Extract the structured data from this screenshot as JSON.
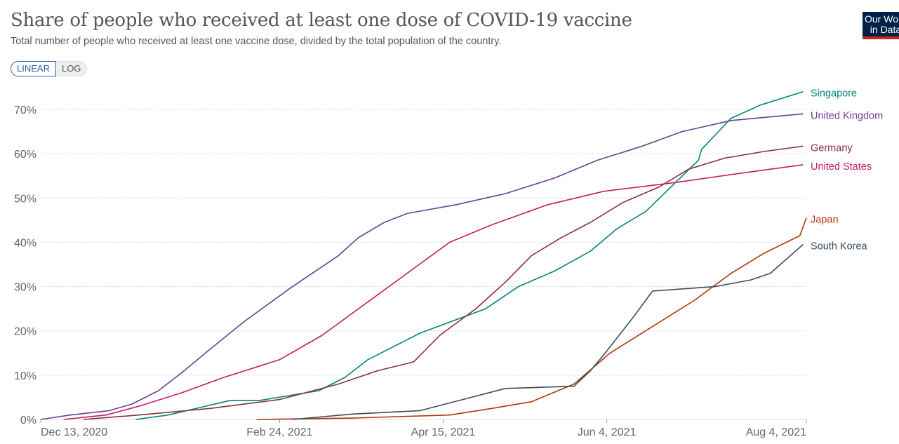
{
  "header": {
    "title": "Share of people who received at least one dose of COVID-19 vaccine",
    "subtitle": "Total number of people who received at least one vaccine dose, divided by the total population of the country.",
    "logo": "Our World in Data"
  },
  "scale_toggle": {
    "linear": "LINEAR",
    "log": "LOG",
    "selected": "LINEAR"
  },
  "chart_data": {
    "type": "line",
    "title": "Share of people who received at least one dose of COVID-19 vaccine",
    "xlim": [
      "2020-12-13",
      "2021-08-04"
    ],
    "ylim": [
      0,
      70
    ],
    "x_ticks": [
      "2020-12-13",
      "2021-02-24",
      "2021-04-15",
      "2021-06-04",
      "2021-08-04"
    ],
    "x_tick_labels": [
      "Dec 13, 2020",
      "Feb 24, 2021",
      "Apr 15, 2021",
      "Jun 4, 2021",
      "Aug 4, 2021"
    ],
    "y_ticks": [
      0,
      10,
      20,
      30,
      40,
      50,
      60,
      70
    ],
    "y_tick_labels": [
      "0%",
      "10%",
      "20%",
      "30%",
      "40%",
      "50%",
      "60%",
      "70%"
    ],
    "grid": "horizontal dashed",
    "legend": "line-end labels, right",
    "series": [
      {
        "name": "Singapore",
        "color": "#00847e",
        "points": [
          [
            "2021-01-11",
            0
          ],
          [
            "2021-01-21",
            1
          ],
          [
            "2021-02-09",
            4.3
          ],
          [
            "2021-02-18",
            4.3
          ],
          [
            "2021-03-08",
            6.5
          ],
          [
            "2021-03-16",
            9.5
          ],
          [
            "2021-03-23",
            13.5
          ],
          [
            "2021-04-04",
            18
          ],
          [
            "2021-04-08",
            19.5
          ],
          [
            "2021-04-28",
            25
          ],
          [
            "2021-05-08",
            30
          ],
          [
            "2021-05-19",
            33.5
          ],
          [
            "2021-05-30",
            38
          ],
          [
            "2021-06-07",
            43
          ],
          [
            "2021-06-16",
            47
          ],
          [
            "2021-06-25",
            53.5
          ],
          [
            "2021-07-02",
            58.5
          ],
          [
            "2021-07-03",
            61
          ],
          [
            "2021-07-12",
            68
          ],
          [
            "2021-07-21",
            71
          ],
          [
            "2021-08-03",
            74
          ]
        ]
      },
      {
        "name": "United Kingdom",
        "color": "#6d3e91",
        "points": [
          [
            "2020-12-13",
            0
          ],
          [
            "2020-12-22",
            1
          ],
          [
            "2021-01-03",
            2
          ],
          [
            "2021-01-10",
            3.5
          ],
          [
            "2021-01-18",
            6.5
          ],
          [
            "2021-01-25",
            10.5
          ],
          [
            "2021-02-03",
            16
          ],
          [
            "2021-02-13",
            22
          ],
          [
            "2021-02-27",
            29.5
          ],
          [
            "2021-03-06",
            33
          ],
          [
            "2021-03-14",
            37
          ],
          [
            "2021-03-20",
            41
          ],
          [
            "2021-03-28",
            44.5
          ],
          [
            "2021-04-04",
            46.5
          ],
          [
            "2021-04-19",
            48.5
          ],
          [
            "2021-05-04",
            51
          ],
          [
            "2021-05-19",
            54.5
          ],
          [
            "2021-06-01",
            58.5
          ],
          [
            "2021-06-14",
            61.5
          ],
          [
            "2021-06-27",
            65
          ],
          [
            "2021-07-12",
            67.5
          ],
          [
            "2021-08-03",
            69
          ]
        ]
      },
      {
        "name": "Germany",
        "color": "#883039",
        "points": [
          [
            "2020-12-26",
            0
          ],
          [
            "2021-01-12",
            1
          ],
          [
            "2021-02-03",
            2.5
          ],
          [
            "2021-02-24",
            4.5
          ],
          [
            "2021-03-14",
            8
          ],
          [
            "2021-03-26",
            11
          ],
          [
            "2021-04-06",
            13
          ],
          [
            "2021-04-14",
            19
          ],
          [
            "2021-04-25",
            25
          ],
          [
            "2021-05-04",
            31
          ],
          [
            "2021-05-12",
            37
          ],
          [
            "2021-05-21",
            41
          ],
          [
            "2021-05-30",
            44.5
          ],
          [
            "2021-06-09",
            49
          ],
          [
            "2021-06-20",
            52.5
          ],
          [
            "2021-06-29",
            56.5
          ],
          [
            "2021-07-10",
            59
          ],
          [
            "2021-07-22",
            60.5
          ],
          [
            "2021-08-03",
            61.7
          ]
        ]
      },
      {
        "name": "United States",
        "color": "#c5196b",
        "points": [
          [
            "2020-12-20",
            0
          ],
          [
            "2021-01-02",
            1
          ],
          [
            "2021-01-12",
            3
          ],
          [
            "2021-01-25",
            6
          ],
          [
            "2021-02-07",
            9.5
          ],
          [
            "2021-02-24",
            13.5
          ],
          [
            "2021-03-09",
            19
          ],
          [
            "2021-03-22",
            26
          ],
          [
            "2021-04-04",
            33
          ],
          [
            "2021-04-17",
            40
          ],
          [
            "2021-04-30",
            44
          ],
          [
            "2021-05-17",
            48.5
          ],
          [
            "2021-06-03",
            51.5
          ],
          [
            "2021-06-25",
            53.5
          ],
          [
            "2021-07-14",
            55.5
          ],
          [
            "2021-08-03",
            57.5
          ]
        ]
      },
      {
        "name": "Japan",
        "color": "#b13507",
        "points": [
          [
            "2021-02-17",
            0
          ],
          [
            "2021-03-18",
            0.3
          ],
          [
            "2021-04-17",
            1
          ],
          [
            "2021-04-30",
            2.5
          ],
          [
            "2021-05-12",
            4
          ],
          [
            "2021-05-25",
            8
          ],
          [
            "2021-06-05",
            15
          ],
          [
            "2021-06-18",
            21
          ],
          [
            "2021-07-01",
            27
          ],
          [
            "2021-07-12",
            33
          ],
          [
            "2021-07-22",
            37.5
          ],
          [
            "2021-08-02",
            41.5
          ],
          [
            "2021-08-04",
            45.5
          ]
        ]
      },
      {
        "name": "South Korea",
        "color": "#3a4a5e",
        "points": [
          [
            "2021-02-28",
            0
          ],
          [
            "2021-03-18",
            1.2
          ],
          [
            "2021-04-08",
            2
          ],
          [
            "2021-04-21",
            4.5
          ],
          [
            "2021-05-04",
            7
          ],
          [
            "2021-05-25",
            7.5
          ],
          [
            "2021-05-30",
            11
          ],
          [
            "2021-06-03",
            14.5
          ],
          [
            "2021-06-12",
            23
          ],
          [
            "2021-06-18",
            29
          ],
          [
            "2021-07-07",
            30
          ],
          [
            "2021-07-18",
            31.5
          ],
          [
            "2021-07-24",
            33
          ],
          [
            "2021-08-03",
            39.5
          ]
        ]
      }
    ]
  }
}
